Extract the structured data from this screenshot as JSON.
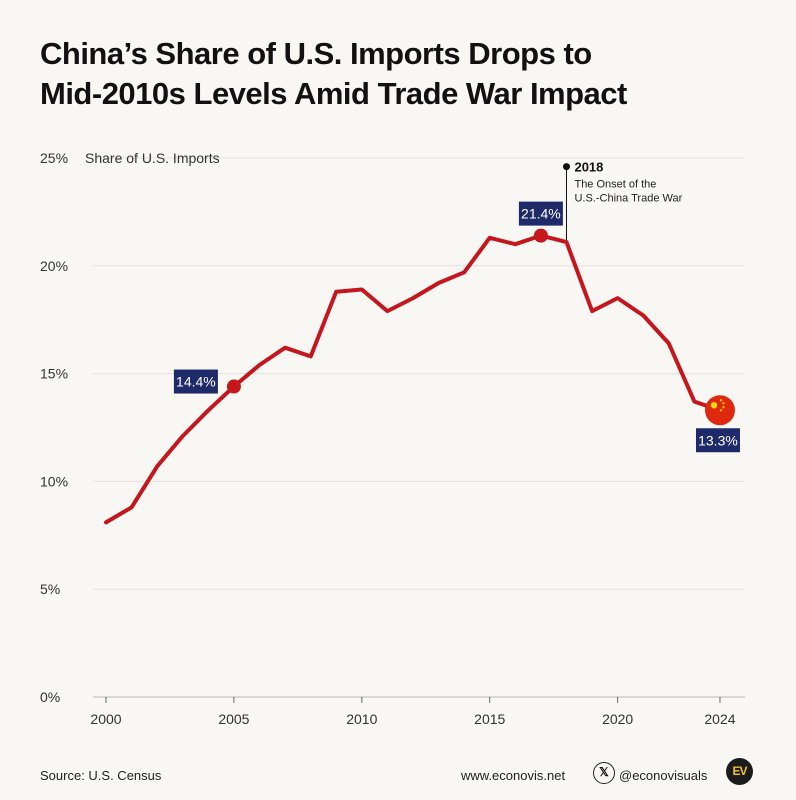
{
  "title_line1": "China’s Share of U.S. Imports Drops to",
  "title_line2": "Mid-2010s Levels Amid Trade War Impact",
  "footer": {
    "source": "Source: U.S. Census",
    "website": "www.econovis.net",
    "handle": "@econovisuals",
    "logo_text": "EV",
    "x_icon_glyph": "𝕏"
  },
  "colors": {
    "line": "#c4161c",
    "label_bg": "#1f2a6b",
    "background": "#f8f7f3",
    "grid": "#e3e1dc"
  },
  "chart_data": {
    "type": "line",
    "ylabel": "Share of U.S. Imports",
    "ylim": [
      0,
      25
    ],
    "yticks": [
      "0%",
      "5%",
      "10%",
      "15%",
      "20%",
      "25%"
    ],
    "xticks": [
      "2000",
      "2005",
      "2010",
      "2015",
      "2020",
      "2024"
    ],
    "grid": true,
    "x": [
      2000,
      2001,
      2002,
      2003,
      2004,
      2005,
      2006,
      2007,
      2008,
      2009,
      2010,
      2011,
      2012,
      2013,
      2014,
      2015,
      2016,
      2017,
      2018,
      2019,
      2020,
      2021,
      2022,
      2023,
      2024
    ],
    "values": [
      8.1,
      8.8,
      10.7,
      12.1,
      13.3,
      14.4,
      15.4,
      16.2,
      15.8,
      18.8,
      18.9,
      17.9,
      18.5,
      19.2,
      19.7,
      21.3,
      21.0,
      21.4,
      21.1,
      17.9,
      18.5,
      17.7,
      16.4,
      13.7,
      13.3
    ],
    "highlights": [
      {
        "x": 2005,
        "value": 14.4,
        "label": "14.4%"
      },
      {
        "x": 2017,
        "value": 21.4,
        "label": "21.4%"
      },
      {
        "x": 2024,
        "value": 13.3,
        "label": "13.3%"
      }
    ],
    "annotation": {
      "x": 2018,
      "year": "2018",
      "line1": "The Onset of the",
      "line2": "U.S.-China Trade War"
    }
  }
}
